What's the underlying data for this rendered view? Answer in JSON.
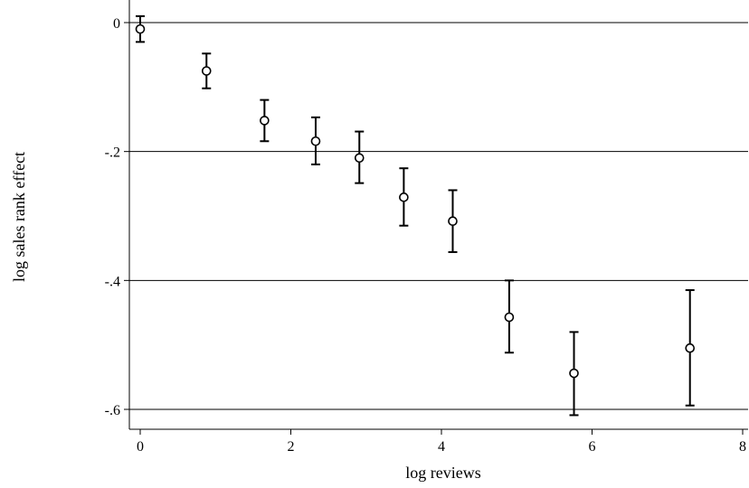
{
  "chart_data": {
    "type": "scatter",
    "title": "",
    "xlabel": "log reviews",
    "ylabel": "log sales rank effect",
    "xlim": [
      0,
      8
    ],
    "ylim": [
      -0.6,
      0
    ],
    "x_ticks": [
      0,
      2,
      4,
      6,
      8
    ],
    "x_tick_labels": [
      "0",
      "2",
      "4",
      "6",
      "8"
    ],
    "y_ticks": [
      0,
      -0.2,
      -0.4,
      -0.6
    ],
    "y_tick_labels": [
      "0",
      "-.2",
      "-.4",
      "-.6"
    ],
    "grid": "horizontal",
    "legend": "none",
    "marker": "hollow-circle",
    "error_bars": "capped",
    "color": "#000000",
    "points": [
      {
        "x": 0.0,
        "y": -0.01,
        "lo": -0.03,
        "hi": 0.01
      },
      {
        "x": 0.88,
        "y": -0.075,
        "lo": -0.102,
        "hi": -0.048
      },
      {
        "x": 1.65,
        "y": -0.152,
        "lo": -0.184,
        "hi": -0.12
      },
      {
        "x": 2.33,
        "y": -0.184,
        "lo": -0.22,
        "hi": -0.147
      },
      {
        "x": 2.91,
        "y": -0.21,
        "lo": -0.249,
        "hi": -0.169
      },
      {
        "x": 3.5,
        "y": -0.271,
        "lo": -0.315,
        "hi": -0.226
      },
      {
        "x": 4.15,
        "y": -0.308,
        "lo": -0.356,
        "hi": -0.26
      },
      {
        "x": 4.9,
        "y": -0.457,
        "lo": -0.512,
        "hi": -0.4
      },
      {
        "x": 5.76,
        "y": -0.544,
        "lo": -0.609,
        "hi": -0.48
      },
      {
        "x": 7.3,
        "y": -0.505,
        "lo": -0.594,
        "hi": -0.415
      }
    ]
  }
}
